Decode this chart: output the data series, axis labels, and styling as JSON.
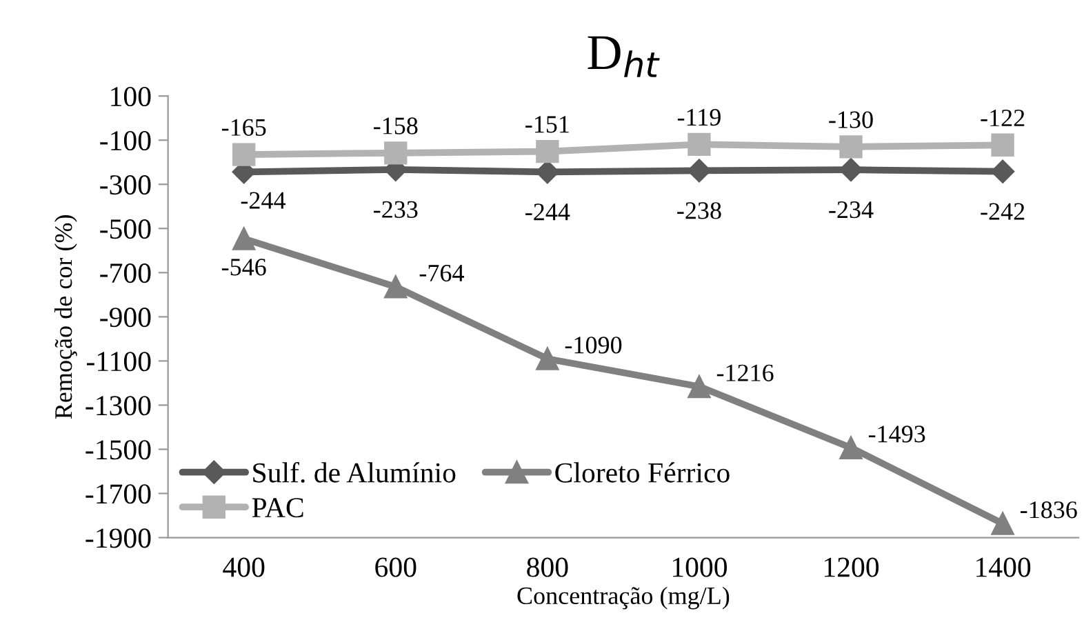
{
  "chart_data": {
    "type": "line",
    "title": "D$_{ht}$",
    "xlabel": "Concentração (mg/L)",
    "ylabel": "Remoção de cor (%)",
    "categories": [
      "400",
      "600",
      "800",
      "1000",
      "1200",
      "1400"
    ],
    "series": [
      {
        "name": "Sulf. de Alumínio",
        "color": "#595959",
        "marker": "diamond",
        "values": [
          -244,
          -233,
          -244,
          -238,
          -234,
          -242
        ]
      },
      {
        "name": "PAC",
        "color": "#b2b2b2",
        "marker": "square",
        "values": [
          -165,
          -158,
          -151,
          -119,
          -130,
          -122
        ]
      },
      {
        "name": "Cloreto Férrico",
        "color": "#808080",
        "marker": "triangle",
        "values": [
          -546,
          -764,
          -1090,
          -1216,
          -1493,
          -1836
        ]
      }
    ],
    "ylim": [
      -1900,
      100
    ],
    "yticks": [
      100,
      -100,
      -300,
      -500,
      -700,
      -900,
      -1100,
      -1300,
      -1500,
      -1700,
      -1900
    ],
    "data_labels": true,
    "legend": "bottom left",
    "grid": false
  }
}
